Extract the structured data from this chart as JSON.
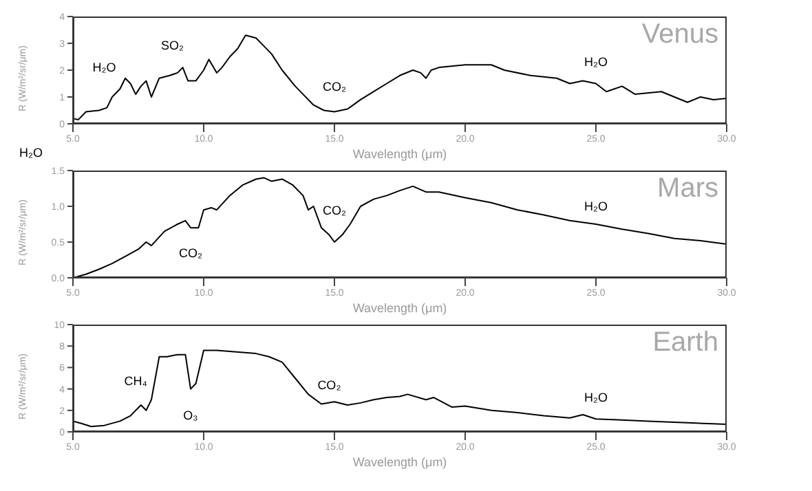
{
  "chart_data": [
    {
      "type": "line",
      "title": "Venus",
      "xlabel": "Wavelength (μm)",
      "ylabel": "R (W/m²/sr/μm)",
      "xlim": [
        5,
        30
      ],
      "xticks": [
        {
          "value": 5,
          "label": "5.0"
        },
        {
          "value": 10,
          "label": "10.0"
        },
        {
          "value": 15,
          "label": "15.0"
        },
        {
          "value": 20,
          "label": "20.0"
        },
        {
          "value": 25,
          "label": "25.0"
        },
        {
          "value": 30,
          "label": "30.0"
        }
      ],
      "ylim": [
        0,
        4
      ],
      "yticks": [
        0,
        1,
        2,
        3,
        4
      ],
      "grid": false,
      "legend": false,
      "marker": "none",
      "line_style": "solid",
      "series": [
        {
          "color": "#000000",
          "x": [
            5.0,
            5.2,
            5.5,
            6.0,
            6.3,
            6.5,
            6.8,
            7.0,
            7.2,
            7.4,
            7.6,
            7.8,
            8.0,
            8.3,
            8.7,
            9.0,
            9.2,
            9.4,
            9.7,
            10.0,
            10.2,
            10.5,
            10.7,
            11.0,
            11.3,
            11.6,
            12.0,
            12.3,
            12.6,
            13.0,
            13.5,
            13.8,
            14.2,
            14.6,
            15.0,
            15.5,
            16.0,
            16.5,
            17.0,
            17.5,
            18.0,
            18.3,
            18.5,
            18.7,
            19.0,
            20.0,
            21.0,
            21.5,
            22.5,
            23.5,
            24.0,
            24.5,
            25.0,
            25.4,
            26.0,
            26.5,
            27.5,
            28.5,
            29.0,
            29.5,
            30.0
          ],
          "values": [
            0.2,
            0.15,
            0.45,
            0.5,
            0.6,
            1.0,
            1.3,
            1.7,
            1.5,
            1.1,
            1.4,
            1.6,
            1.0,
            1.7,
            1.8,
            1.9,
            2.1,
            1.6,
            1.6,
            2.0,
            2.4,
            1.9,
            2.1,
            2.5,
            2.8,
            3.3,
            3.2,
            2.9,
            2.6,
            2.0,
            1.4,
            1.1,
            0.7,
            0.5,
            0.45,
            0.55,
            0.9,
            1.2,
            1.5,
            1.8,
            2.0,
            1.9,
            1.7,
            2.0,
            2.1,
            2.2,
            2.2,
            2.0,
            1.8,
            1.7,
            1.5,
            1.6,
            1.5,
            1.2,
            1.4,
            1.1,
            1.2,
            0.8,
            1.0,
            0.9,
            0.95
          ]
        }
      ],
      "annotations": [
        "H₂O",
        "SO₂",
        "CO₂",
        "H₂O",
        "H₂O"
      ]
    },
    {
      "type": "line",
      "title": "Mars",
      "xlabel": "Wavelength (μm)",
      "ylabel": "R (W/m²/sr/μm)",
      "xlim": [
        5,
        30
      ],
      "xticks": [
        {
          "value": 5,
          "label": "5.0"
        },
        {
          "value": 10,
          "label": "10.0"
        },
        {
          "value": 15,
          "label": "15.0"
        },
        {
          "value": 20,
          "label": "20.0"
        },
        {
          "value": 25,
          "label": "25.0"
        },
        {
          "value": 30,
          "label": "30.0"
        }
      ],
      "ylim": [
        0,
        1.5
      ],
      "yticks": [
        {
          "value": 0,
          "label": "0.0"
        },
        {
          "value": 0.5,
          "label": "0.5"
        },
        {
          "value": 1,
          "label": "1.0"
        },
        {
          "value": 1.5,
          "label": "1.5"
        }
      ],
      "grid": false,
      "legend": false,
      "marker": "none",
      "line_style": "solid",
      "series": [
        {
          "color": "#000000",
          "x": [
            5.0,
            5.5,
            6.0,
            6.5,
            7.0,
            7.5,
            7.8,
            8.0,
            8.5,
            9.0,
            9.3,
            9.5,
            9.8,
            10.0,
            10.3,
            10.5,
            11.0,
            11.5,
            12.0,
            12.3,
            12.6,
            13.0,
            13.4,
            13.8,
            14.0,
            14.2,
            14.5,
            14.8,
            15.0,
            15.3,
            15.6,
            16.0,
            16.5,
            17.0,
            17.5,
            18.0,
            18.5,
            19.0,
            20.0,
            21.0,
            21.5,
            22.0,
            23.0,
            24.0,
            25.0,
            26.0,
            27.0,
            28.0,
            29.0,
            30.0
          ],
          "values": [
            0.0,
            0.05,
            0.12,
            0.2,
            0.3,
            0.4,
            0.5,
            0.45,
            0.65,
            0.75,
            0.8,
            0.7,
            0.7,
            0.95,
            0.98,
            0.95,
            1.15,
            1.3,
            1.38,
            1.4,
            1.35,
            1.38,
            1.3,
            1.15,
            0.95,
            1.0,
            0.7,
            0.6,
            0.5,
            0.6,
            0.75,
            1.0,
            1.1,
            1.15,
            1.22,
            1.28,
            1.2,
            1.2,
            1.12,
            1.05,
            1.0,
            0.95,
            0.88,
            0.8,
            0.75,
            0.68,
            0.62,
            0.55,
            0.52,
            0.47
          ]
        }
      ],
      "annotations": [
        "CO₂",
        "CO₂",
        "H₂O"
      ]
    },
    {
      "type": "line",
      "title": "Earth",
      "xlabel": "Wavelength (μm)",
      "ylabel": "R (W/m²/sr/μm)",
      "xlim": [
        5,
        30
      ],
      "xticks": [
        {
          "value": 5,
          "label": "5.0"
        },
        {
          "value": 10,
          "label": "10.0"
        },
        {
          "value": 15,
          "label": "15.0"
        },
        {
          "value": 20,
          "label": "20.0"
        },
        {
          "value": 25,
          "label": "25.0"
        },
        {
          "value": 30,
          "label": "30.0"
        }
      ],
      "ylim": [
        0,
        10
      ],
      "yticks": [
        0,
        2,
        4,
        6,
        8,
        10
      ],
      "grid": false,
      "legend": false,
      "marker": "none",
      "line_style": "solid",
      "series": [
        {
          "color": "#000000",
          "x": [
            5.0,
            5.3,
            5.7,
            6.2,
            6.8,
            7.2,
            7.6,
            7.8,
            8.0,
            8.3,
            8.6,
            9.0,
            9.3,
            9.5,
            9.7,
            10.0,
            10.5,
            11.0,
            12.0,
            12.5,
            13.0,
            13.5,
            14.0,
            14.5,
            15.0,
            15.5,
            16.0,
            16.5,
            17.0,
            17.5,
            17.8,
            18.5,
            18.8,
            19.5,
            20.0,
            21.0,
            22.0,
            23.0,
            24.0,
            24.5,
            25.0,
            26.0,
            27.0,
            28.0,
            30.0
          ],
          "values": [
            1.0,
            0.8,
            0.5,
            0.6,
            1.0,
            1.5,
            2.5,
            2.0,
            3.0,
            7.0,
            7.0,
            7.2,
            7.2,
            4.0,
            4.5,
            7.6,
            7.6,
            7.5,
            7.3,
            7.0,
            6.5,
            5.0,
            3.5,
            2.6,
            2.8,
            2.5,
            2.7,
            3.0,
            3.2,
            3.3,
            3.5,
            3.0,
            3.2,
            2.3,
            2.4,
            2.0,
            1.8,
            1.5,
            1.3,
            1.6,
            1.2,
            1.1,
            1.0,
            0.9,
            0.7
          ]
        }
      ],
      "annotations": [
        "CH₄",
        "O₃",
        "CO₂",
        "H₂O"
      ]
    }
  ]
}
